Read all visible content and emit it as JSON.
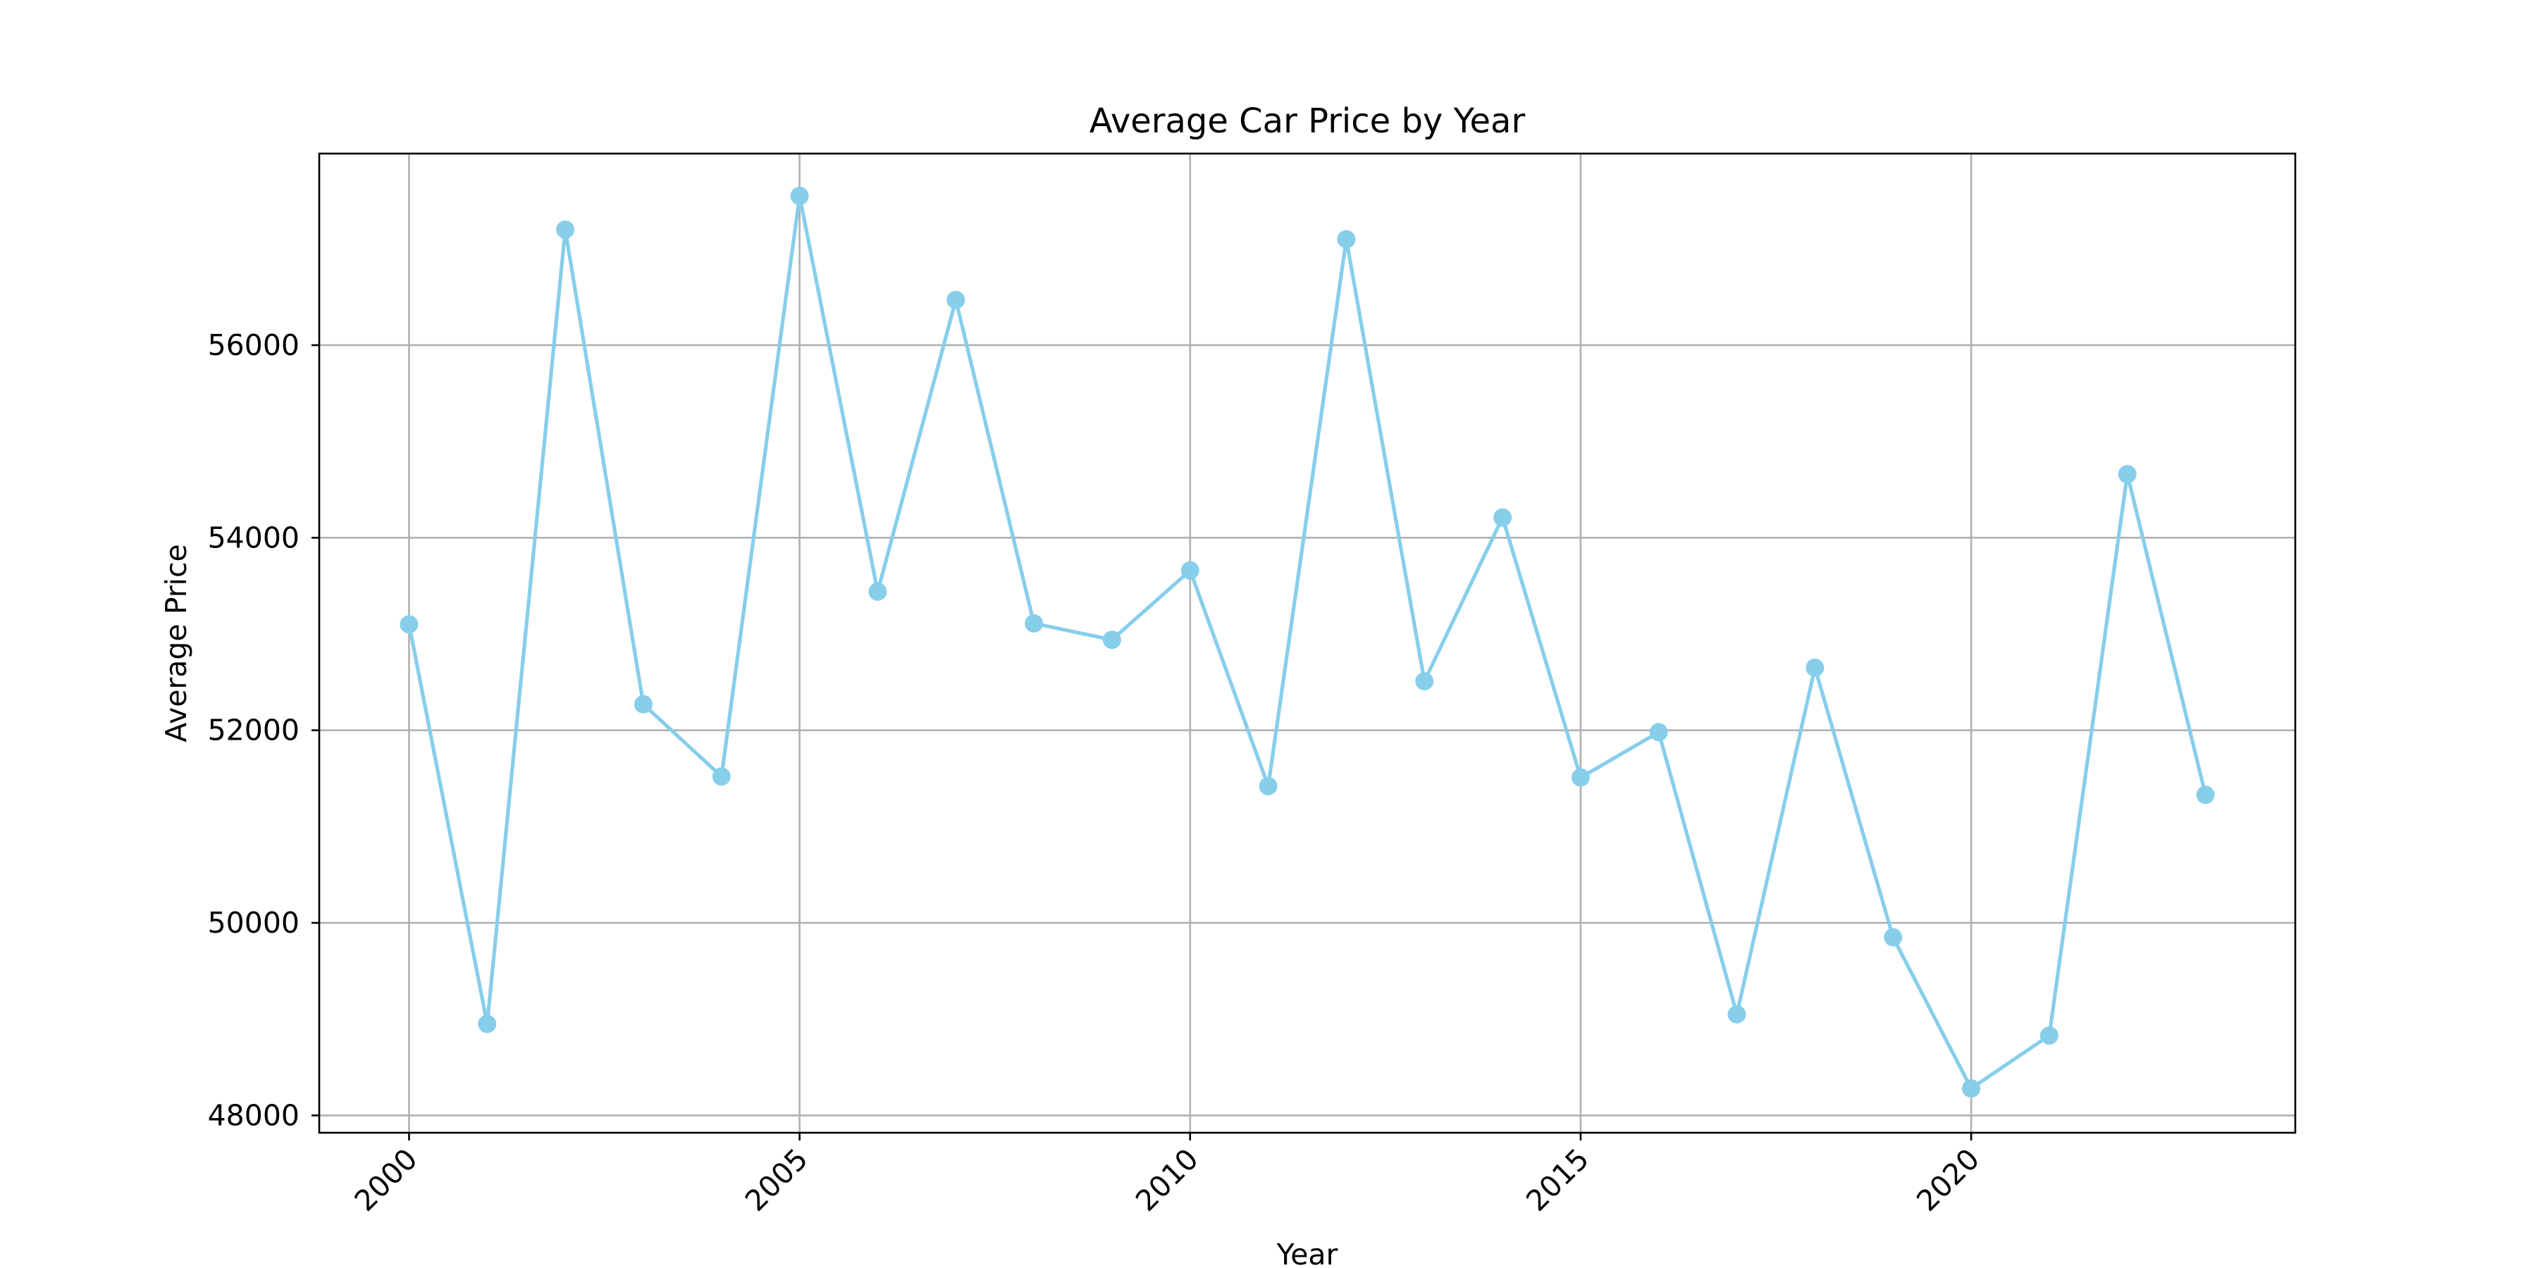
{
  "chart_data": {
    "type": "line",
    "title": "Average Car Price by Year",
    "xlabel": "Year",
    "ylabel": "Average Price",
    "x": [
      2000,
      2001,
      2002,
      2003,
      2004,
      2005,
      2006,
      2007,
      2008,
      2009,
      2010,
      2011,
      2012,
      2013,
      2014,
      2015,
      2016,
      2017,
      2018,
      2019,
      2020,
      2021,
      2022,
      2023
    ],
    "series": [
      {
        "values": [
          53100,
          48950,
          57200,
          52270,
          51520,
          57550,
          53440,
          56470,
          53110,
          52940,
          53660,
          51420,
          57100,
          52510,
          54210,
          51510,
          51980,
          49050,
          52650,
          49850,
          48280,
          48830,
          54660,
          51330
        ],
        "color": "#87ceeb",
        "marker": "circle"
      }
    ],
    "xlim": [
      1998.85,
      2024.15
    ],
    "ylim": [
      47820,
      57990
    ],
    "xticks": [
      2000,
      2005,
      2010,
      2015,
      2020
    ],
    "yticks": [
      48000,
      50000,
      52000,
      54000,
      56000
    ],
    "grid": true,
    "grid_color": "#b0b0b0",
    "axis_color": "#000000",
    "xtick_rotation": 45
  }
}
